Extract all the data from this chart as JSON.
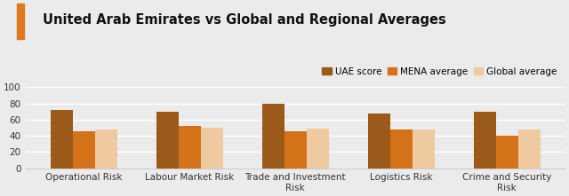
{
  "title": "United Arab Emirates vs Global and Regional Averages",
  "categories": [
    "Operational Risk",
    "Labour Market Risk",
    "Trade and Investment\nRisk",
    "Logistics Risk",
    "Crime and Security\nRisk"
  ],
  "series": {
    "UAE score": [
      72,
      70,
      79,
      68,
      70
    ],
    "MENA average": [
      46,
      52,
      46,
      48,
      40
    ],
    "Global average": [
      48,
      50,
      49,
      48,
      48
    ]
  },
  "colors": {
    "UAE score": "#9B5A1A",
    "MENA average": "#D4721A",
    "Global average": "#EFC9A0"
  },
  "ylim": [
    0,
    100
  ],
  "yticks": [
    0,
    20,
    40,
    60,
    80,
    100
  ],
  "accent_color": "#E07820",
  "bg_color": "#EBEBEB",
  "title_fontsize": 10.5,
  "legend_fontsize": 7.5,
  "tick_fontsize": 7.5
}
